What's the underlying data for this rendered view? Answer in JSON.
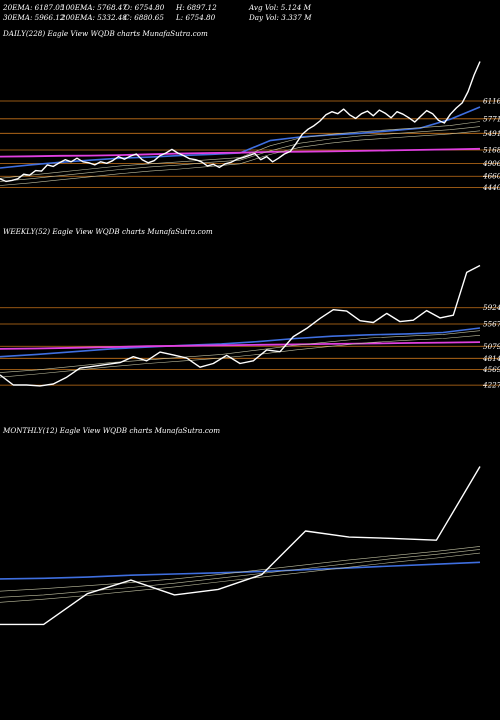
{
  "header": {
    "row1": [
      "20EMA: 6187.05",
      "100EMA: 5768.47",
      "O: 6754.80",
      "H: 6897.12",
      "Avg Vol: 5.124  M"
    ],
    "row2": [
      "30EMA: 5966.12",
      "200EMA: 5332.48",
      "C: 6880.65",
      "L: 6754.80",
      "Day Vol: 3.337 M"
    ]
  },
  "colors": {
    "background": "#000000",
    "price": "#ffffff",
    "ema_blue": "#3f6fe0",
    "ema_magenta": "#e040e0",
    "level_line": "#c8741a",
    "thin_ema": "#bfbfa0"
  },
  "chart_data": [
    {
      "type": "line",
      "title": "DAILY(228) Eagle  View  WQDB charts MunafaSutra.com",
      "levels": [
        6116,
        5771,
        5491,
        5168,
        4906,
        4660,
        4440
      ],
      "level_labels": [
        "6116",
        "5771",
        "5491",
        "5168",
        "4906",
        "4660",
        "4440"
      ],
      "ylim": [
        4200,
        7200
      ],
      "series": [
        {
          "role": "price",
          "values": [
            4610,
            4560,
            4580,
            4610,
            4700,
            4680,
            4770,
            4760,
            4880,
            4850,
            4920,
            4980,
            4940,
            5010,
            4940,
            4920,
            4880,
            4940,
            4910,
            4960,
            5040,
            4990,
            5050,
            5090,
            4980,
            4920,
            4960,
            5060,
            5110,
            5180,
            5110,
            5060,
            5000,
            4980,
            4940,
            4860,
            4890,
            4830,
            4900,
            4930,
            4990,
            5020,
            5060,
            5100,
            4980,
            5040,
            4940,
            5010,
            5090,
            5140,
            5300,
            5470,
            5570,
            5640,
            5730,
            5850,
            5910,
            5870,
            5960,
            5850,
            5780,
            5870,
            5920,
            5830,
            5940,
            5880,
            5790,
            5910,
            5860,
            5790,
            5710,
            5820,
            5930,
            5870,
            5740,
            5690,
            5860,
            5980,
            6080,
            6300,
            6620,
            6880
          ]
        },
        {
          "role": "ema_blue",
          "values": [
            4820,
            4880,
            4930,
            4970,
            5010,
            5030,
            5060,
            5080,
            5110,
            5350,
            5420,
            5460,
            5490,
            5540,
            5590,
            5760,
            6000
          ]
        },
        {
          "role": "ema_magenta",
          "values": [
            5040,
            5045,
            5055,
            5060,
            5070,
            5085,
            5100,
            5110,
            5115,
            5130,
            5135,
            5140,
            5150,
            5160,
            5170,
            5180,
            5190
          ]
        },
        {
          "role": "ema_thin_1",
          "values": [
            4620,
            4680,
            4740,
            4800,
            4860,
            4900,
            4940,
            4980,
            5020,
            5250,
            5400,
            5470,
            5520,
            5560,
            5600,
            5640,
            5720
          ]
        },
        {
          "role": "ema_thin_2",
          "values": [
            4560,
            4610,
            4670,
            4730,
            4790,
            4840,
            4880,
            4930,
            4970,
            5150,
            5300,
            5380,
            5440,
            5480,
            5520,
            5560,
            5620
          ]
        },
        {
          "role": "ema_thin_3",
          "values": [
            4480,
            4530,
            4590,
            4650,
            4710,
            4760,
            4800,
            4850,
            4900,
            5080,
            5220,
            5300,
            5360,
            5400,
            5440,
            5480,
            5540
          ]
        }
      ]
    },
    {
      "type": "line",
      "title": "WEEKLY(52) Eagle  View  WQDB charts MunafaSutra.com",
      "levels": [
        5924,
        5567,
        5079,
        4814,
        4569,
        4227
      ],
      "level_labels": [
        "5924",
        "5567",
        "5079",
        "4814",
        "4569",
        "4227"
      ],
      "ylim": [
        3900,
        7300
      ],
      "series": [
        {
          "role": "price",
          "values": [
            4450,
            4230,
            4230,
            4210,
            4250,
            4400,
            4600,
            4640,
            4680,
            4720,
            4850,
            4760,
            4950,
            4890,
            4820,
            4620,
            4700,
            4880,
            4700,
            4760,
            5000,
            4960,
            5290,
            5470,
            5690,
            5880,
            5850,
            5640,
            5600,
            5800,
            5620,
            5650,
            5860,
            5700,
            5760,
            6700,
            6850
          ]
        },
        {
          "role": "ema_blue",
          "values": [
            4850,
            4900,
            4960,
            5020,
            5060,
            5100,
            5130,
            5180,
            5250,
            5300,
            5330,
            5350,
            5380,
            5480
          ]
        },
        {
          "role": "ema_magenta",
          "values": [
            5020,
            5030,
            5045,
            5060,
            5080,
            5090,
            5100,
            5110,
            5120,
            5130,
            5140,
            5150,
            5160,
            5170
          ]
        },
        {
          "role": "ema_thin_1",
          "values": [
            4500,
            4560,
            4640,
            4720,
            4780,
            4840,
            4900,
            5000,
            5100,
            5180,
            5260,
            5300,
            5340,
            5420
          ]
        },
        {
          "role": "ema_thin_2",
          "values": [
            4400,
            4470,
            4550,
            4630,
            4700,
            4760,
            4820,
            4900,
            5000,
            5080,
            5160,
            5210,
            5250,
            5320
          ]
        }
      ]
    },
    {
      "type": "line",
      "title": "MONTHLY(12) Eagle  View  WQDB charts MunafaSutra.com",
      "ylim": [
        3600,
        7100
      ],
      "series": [
        {
          "role": "price",
          "values": [
            4180,
            4180,
            4680,
            4900,
            4660,
            4750,
            4990,
            5700,
            5600,
            5580,
            5550,
            6750
          ]
        },
        {
          "role": "ema_blue",
          "values": [
            4920,
            4930,
            4950,
            4980,
            5000,
            5020,
            5040,
            5070,
            5100,
            5130,
            5160,
            5190
          ]
        },
        {
          "role": "ema_thin_1",
          "values": [
            4720,
            4760,
            4810,
            4860,
            4920,
            4990,
            5070,
            5150,
            5230,
            5300,
            5370,
            5450
          ]
        },
        {
          "role": "ema_thin_2",
          "values": [
            4620,
            4660,
            4720,
            4780,
            4850,
            4930,
            5010,
            5090,
            5170,
            5250,
            5320,
            5400
          ]
        },
        {
          "role": "ema_thin_3",
          "values": [
            4540,
            4590,
            4650,
            4720,
            4790,
            4870,
            4950,
            5030,
            5110,
            5190,
            5260,
            5340
          ]
        }
      ]
    }
  ]
}
